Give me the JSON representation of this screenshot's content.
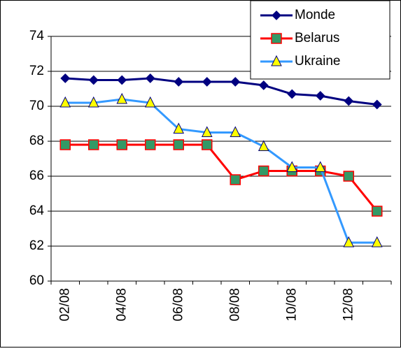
{
  "chart_data": {
    "type": "line",
    "categories": [
      "02/08",
      null,
      "04/08",
      null,
      "06/08",
      null,
      "08/08",
      null,
      "10/08",
      null,
      "12/08",
      null
    ],
    "series": [
      {
        "name": "Monde",
        "color": "#000080",
        "marker": "diamond",
        "marker_fill": "#000080",
        "values": [
          71.6,
          71.5,
          71.5,
          71.6,
          71.4,
          71.4,
          71.4,
          71.2,
          70.7,
          70.6,
          70.3,
          70.1
        ]
      },
      {
        "name": "Belarus",
        "color": "#ff0000",
        "marker": "square",
        "marker_fill": "#339966",
        "values": [
          67.8,
          67.8,
          67.8,
          67.8,
          67.8,
          67.8,
          65.8,
          66.3,
          66.3,
          66.3,
          66.0,
          64.0
        ]
      },
      {
        "name": "Ukraine",
        "color": "#3399ff",
        "marker": "triangle",
        "marker_fill": "#ffff00",
        "values": [
          70.2,
          70.2,
          70.4,
          70.2,
          68.7,
          68.5,
          68.5,
          67.7,
          66.5,
          66.5,
          62.2,
          62.2
        ]
      }
    ],
    "ylim": [
      60,
      74
    ],
    "yticks": [
      60,
      62,
      64,
      66,
      68,
      70,
      72,
      74
    ],
    "grid": true,
    "legend": "upper right"
  }
}
